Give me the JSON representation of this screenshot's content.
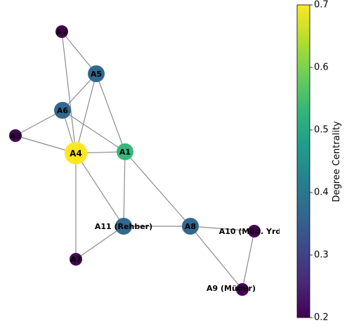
{
  "graph": {
    "nodes": [
      {
        "id": "A2",
        "label": "A2",
        "centrality": 0.2,
        "color": "#440154"
      },
      {
        "id": "A5",
        "label": "A5",
        "centrality": 0.4,
        "color": "#31688e"
      },
      {
        "id": "A6",
        "label": "A6",
        "centrality": 0.4,
        "color": "#31688e"
      },
      {
        "id": "A3",
        "label": "A3",
        "centrality": 0.2,
        "color": "#440154"
      },
      {
        "id": "A4",
        "label": "A4",
        "centrality": 0.7,
        "color": "#fde725"
      },
      {
        "id": "A1",
        "label": "A1",
        "centrality": 0.5,
        "color": "#35b779"
      },
      {
        "id": "A11",
        "label": "A11 (Rehber)",
        "centrality": 0.4,
        "color": "#31688e"
      },
      {
        "id": "A8",
        "label": "A8",
        "centrality": 0.4,
        "color": "#31688e"
      },
      {
        "id": "A10",
        "label": "A10 (Müd. Yrd",
        "centrality": 0.2,
        "color": "#440154"
      },
      {
        "id": "A7",
        "label": "A7",
        "centrality": 0.2,
        "color": "#440154"
      },
      {
        "id": "A9",
        "label": "A9 (Müdür)",
        "centrality": 0.2,
        "color": "#440154"
      }
    ],
    "edges": [
      [
        "A2",
        "A5"
      ],
      [
        "A2",
        "A4"
      ],
      [
        "A5",
        "A6"
      ],
      [
        "A5",
        "A4"
      ],
      [
        "A5",
        "A1"
      ],
      [
        "A6",
        "A3"
      ],
      [
        "A6",
        "A4"
      ],
      [
        "A6",
        "A1"
      ],
      [
        "A3",
        "A4"
      ],
      [
        "A4",
        "A1"
      ],
      [
        "A4",
        "A11"
      ],
      [
        "A4",
        "A7"
      ],
      [
        "A1",
        "A11"
      ],
      [
        "A1",
        "A8"
      ],
      [
        "A11",
        "A8"
      ],
      [
        "A11",
        "A7"
      ],
      [
        "A8",
        "A10"
      ],
      [
        "A8",
        "A9"
      ],
      [
        "A10",
        "A9"
      ]
    ]
  },
  "colorbar": {
    "title": "Degree Centrality",
    "min": 0.2,
    "max": 0.7,
    "ticks": [
      "0.2",
      "0.3",
      "0.4",
      "0.5",
      "0.6",
      "0.7"
    ],
    "colormap": [
      "#440154",
      "#482878",
      "#3e4989",
      "#31688e",
      "#26828e",
      "#1f9e89",
      "#35b779",
      "#6ece58",
      "#b5de2b",
      "#fde725"
    ]
  }
}
